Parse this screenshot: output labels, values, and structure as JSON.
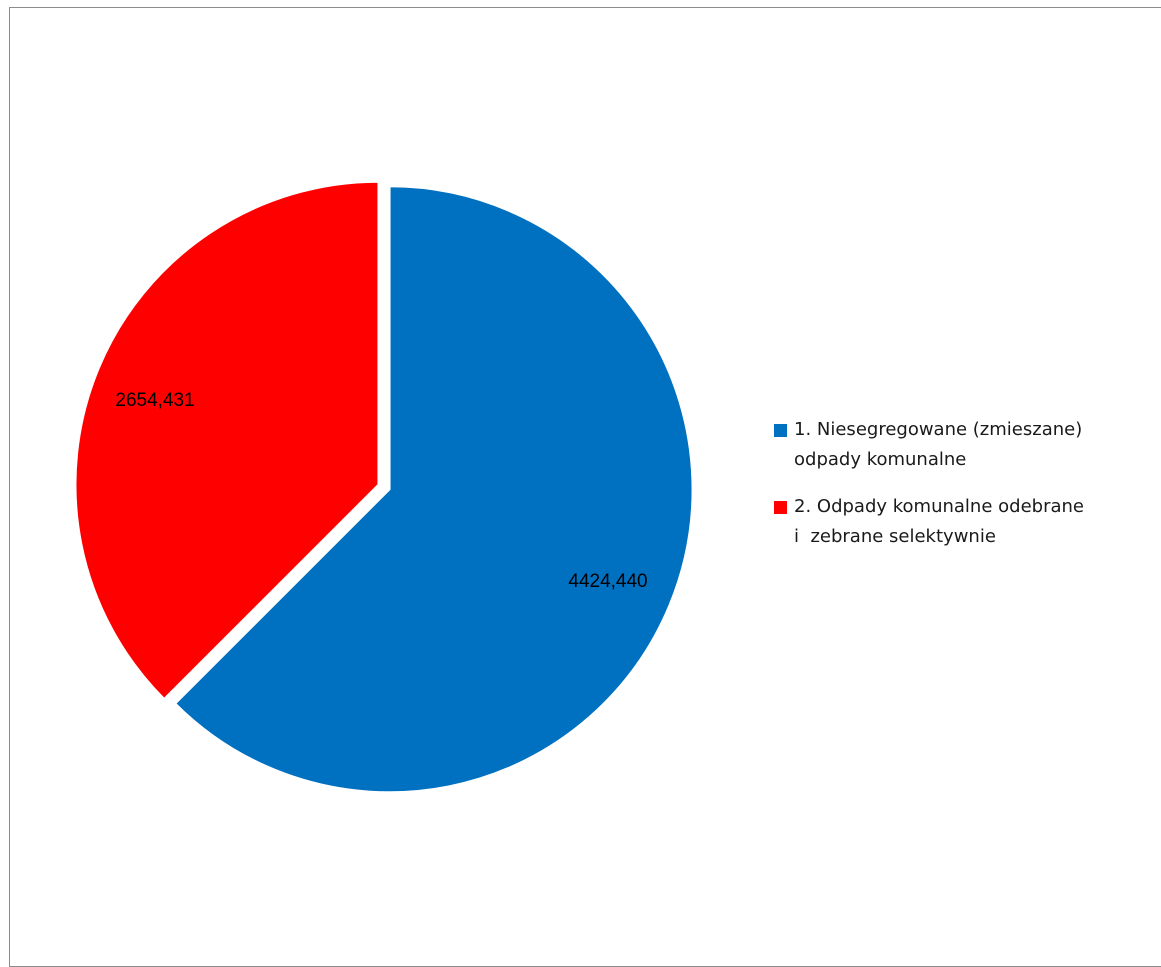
{
  "chart_data": {
    "type": "pie",
    "title": "",
    "categories": [
      "1. Niesegregowane (zmieszane) odpady komunalne",
      "2. Odpady komunalne odebrane i  zebrane selektywnie"
    ],
    "values": [
      4424.44,
      2654.431
    ],
    "value_labels": [
      "4424,440",
      "2654,431"
    ],
    "colors": [
      "#0070c0",
      "#ff0000"
    ],
    "exploded": true,
    "legend": {
      "placement": "right",
      "entries": [
        {
          "line1": "1. Niesegregowane (zmieszane)",
          "line2": "odpady komunalne"
        },
        {
          "line1": "2. Odpady komunalne odebrane",
          "line2": "i  zebrane selektywnie"
        }
      ]
    }
  }
}
